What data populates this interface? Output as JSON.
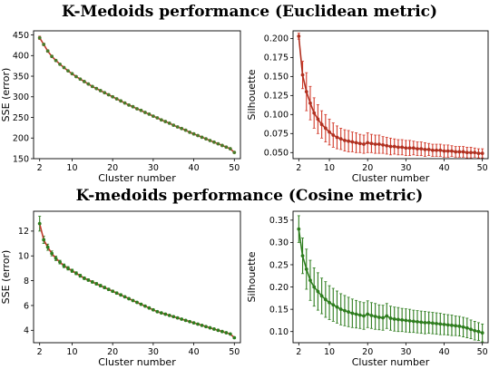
{
  "titles": {
    "top": "K-Medoids performance (Euclidean metric)",
    "bottom": "K-medoids performance (Cosine metric)"
  },
  "chart_data": [
    {
      "id": "euclid-sse",
      "type": "line",
      "title": "",
      "xlabel": "Cluster number",
      "ylabel": "SSE (error)",
      "xlim": [
        0.5,
        51.5
      ],
      "ylim": [
        150,
        460
      ],
      "xticks": [
        2,
        10,
        20,
        30,
        40,
        50
      ],
      "yticks": [
        150,
        200,
        250,
        300,
        350,
        400,
        450
      ],
      "ytick_labels": [
        "150",
        "200",
        "250",
        "300",
        "350",
        "400",
        "450"
      ],
      "grid": false,
      "legend": "none",
      "line_color": "#c0392b",
      "marker_color": "#4a7a2a",
      "error_color": "#c0392b",
      "x": [
        2,
        3,
        4,
        5,
        6,
        7,
        8,
        9,
        10,
        11,
        12,
        13,
        14,
        15,
        16,
        17,
        18,
        19,
        20,
        21,
        22,
        23,
        24,
        25,
        26,
        27,
        28,
        29,
        30,
        31,
        32,
        33,
        34,
        35,
        36,
        37,
        38,
        39,
        40,
        41,
        42,
        43,
        44,
        45,
        46,
        47,
        48,
        49,
        50
      ],
      "y": [
        443,
        427,
        411,
        398,
        388,
        379,
        371,
        363,
        356,
        349,
        343,
        337,
        331,
        325,
        320,
        315,
        310,
        305,
        300,
        295,
        290,
        285,
        280,
        276,
        271,
        267,
        262,
        258,
        253,
        249,
        244,
        240,
        236,
        231,
        227,
        223,
        219,
        214,
        210,
        206,
        202,
        198,
        194,
        190,
        186,
        182,
        178,
        174,
        165
      ],
      "err": [
        4,
        3,
        3,
        2,
        2,
        2,
        2,
        2,
        2,
        2,
        2,
        2,
        2,
        2,
        2,
        2,
        2,
        2,
        2,
        2,
        2,
        2,
        2,
        2,
        2,
        2,
        2,
        2,
        2,
        2,
        2,
        2,
        2,
        2,
        2,
        2,
        2,
        2,
        2,
        2,
        2,
        2,
        2,
        2,
        2,
        2,
        2,
        2,
        2
      ]
    },
    {
      "id": "euclid-silhouette",
      "type": "line",
      "title": "",
      "xlabel": "Cluster number",
      "ylabel": "Silhouette",
      "xlim": [
        0.5,
        51.5
      ],
      "ylim": [
        0.042,
        0.21
      ],
      "xticks": [
        2,
        10,
        20,
        30,
        40,
        50
      ],
      "yticks": [
        0.05,
        0.075,
        0.1,
        0.125,
        0.15,
        0.175,
        0.2
      ],
      "ytick_labels": [
        "0.050",
        "0.075",
        "0.100",
        "0.125",
        "0.150",
        "0.175",
        "0.200"
      ],
      "grid": false,
      "legend": "none",
      "line_color": "#b03020",
      "marker_color": "#b03020",
      "error_color": "#d23a2a",
      "x": [
        2,
        3,
        4,
        5,
        6,
        7,
        8,
        9,
        10,
        11,
        12,
        13,
        14,
        15,
        16,
        17,
        18,
        19,
        20,
        21,
        22,
        23,
        24,
        25,
        26,
        27,
        28,
        29,
        30,
        31,
        32,
        33,
        34,
        35,
        36,
        37,
        38,
        39,
        40,
        41,
        42,
        43,
        44,
        45,
        46,
        47,
        48,
        49,
        50
      ],
      "y": [
        0.203,
        0.152,
        0.13,
        0.115,
        0.102,
        0.094,
        0.087,
        0.082,
        0.077,
        0.073,
        0.07,
        0.068,
        0.066,
        0.065,
        0.064,
        0.063,
        0.062,
        0.061,
        0.063,
        0.062,
        0.061,
        0.061,
        0.06,
        0.059,
        0.058,
        0.058,
        0.057,
        0.057,
        0.056,
        0.056,
        0.056,
        0.055,
        0.055,
        0.054,
        0.054,
        0.053,
        0.053,
        0.053,
        0.052,
        0.052,
        0.052,
        0.051,
        0.051,
        0.051,
        0.05,
        0.05,
        0.05,
        0.049,
        0.049
      ],
      "err": [
        0.004,
        0.018,
        0.025,
        0.022,
        0.02,
        0.019,
        0.018,
        0.018,
        0.017,
        0.016,
        0.015,
        0.014,
        0.014,
        0.014,
        0.013,
        0.013,
        0.012,
        0.012,
        0.013,
        0.012,
        0.012,
        0.012,
        0.011,
        0.011,
        0.011,
        0.01,
        0.01,
        0.01,
        0.01,
        0.01,
        0.009,
        0.009,
        0.009,
        0.009,
        0.008,
        0.008,
        0.008,
        0.008,
        0.008,
        0.008,
        0.007,
        0.007,
        0.007,
        0.007,
        0.007,
        0.007,
        0.006,
        0.006,
        0.006
      ]
    },
    {
      "id": "cosine-sse",
      "type": "line",
      "title": "",
      "xlabel": "Cluster number",
      "ylabel": "SSE (error)",
      "xlim": [
        0.5,
        51.5
      ],
      "ylim": [
        3.0,
        13.6
      ],
      "xticks": [
        2,
        10,
        20,
        30,
        40,
        50
      ],
      "yticks": [
        4,
        6,
        8,
        10,
        12
      ],
      "ytick_labels": [
        "4",
        "6",
        "8",
        "10",
        "12"
      ],
      "grid": false,
      "legend": "none",
      "line_color": "#c0392b",
      "marker_color": "#2e7d1e",
      "error_color": "#2e7d1e",
      "x": [
        2,
        3,
        4,
        5,
        6,
        7,
        8,
        9,
        10,
        11,
        12,
        13,
        14,
        15,
        16,
        17,
        18,
        19,
        20,
        21,
        22,
        23,
        24,
        25,
        26,
        27,
        28,
        29,
        30,
        31,
        32,
        33,
        34,
        35,
        36,
        37,
        38,
        39,
        40,
        41,
        42,
        43,
        44,
        45,
        46,
        47,
        48,
        49,
        50
      ],
      "y": [
        12.6,
        11.3,
        10.7,
        10.2,
        9.8,
        9.5,
        9.2,
        9.0,
        8.8,
        8.6,
        8.4,
        8.2,
        8.05,
        7.9,
        7.75,
        7.6,
        7.45,
        7.3,
        7.15,
        7.0,
        6.85,
        6.7,
        6.55,
        6.4,
        6.25,
        6.1,
        5.95,
        5.8,
        5.65,
        5.5,
        5.4,
        5.3,
        5.2,
        5.1,
        5.0,
        4.9,
        4.8,
        4.7,
        4.6,
        4.5,
        4.4,
        4.3,
        4.2,
        4.1,
        4.0,
        3.9,
        3.8,
        3.7,
        3.4
      ],
      "err": [
        0.6,
        0.3,
        0.25,
        0.2,
        0.18,
        0.15,
        0.15,
        0.14,
        0.13,
        0.12,
        0.12,
        0.11,
        0.1,
        0.1,
        0.1,
        0.1,
        0.1,
        0.09,
        0.09,
        0.09,
        0.09,
        0.08,
        0.08,
        0.08,
        0.08,
        0.08,
        0.07,
        0.07,
        0.07,
        0.07,
        0.07,
        0.07,
        0.06,
        0.06,
        0.06,
        0.06,
        0.06,
        0.06,
        0.06,
        0.06,
        0.05,
        0.05,
        0.05,
        0.05,
        0.05,
        0.05,
        0.05,
        0.05,
        0.05
      ]
    },
    {
      "id": "cosine-silhouette",
      "type": "line",
      "title": "",
      "xlabel": "Cluster number",
      "ylabel": "Silhouette",
      "xlim": [
        0.5,
        51.5
      ],
      "ylim": [
        0.075,
        0.37
      ],
      "xticks": [
        2,
        10,
        20,
        30,
        40,
        50
      ],
      "yticks": [
        0.1,
        0.15,
        0.2,
        0.25,
        0.3,
        0.35
      ],
      "ytick_labels": [
        "0.10",
        "0.15",
        "0.20",
        "0.25",
        "0.30",
        "0.35"
      ],
      "grid": false,
      "legend": "none",
      "line_color": "#2e7d1e",
      "marker_color": "#2e7d1e",
      "error_color": "#2e7d1e",
      "x": [
        2,
        3,
        4,
        5,
        6,
        7,
        8,
        9,
        10,
        11,
        12,
        13,
        14,
        15,
        16,
        17,
        18,
        19,
        20,
        21,
        22,
        23,
        24,
        25,
        26,
        27,
        28,
        29,
        30,
        31,
        32,
        33,
        34,
        35,
        36,
        37,
        38,
        39,
        40,
        41,
        42,
        43,
        44,
        45,
        46,
        47,
        48,
        49,
        50
      ],
      "y": [
        0.33,
        0.27,
        0.24,
        0.215,
        0.2,
        0.19,
        0.18,
        0.172,
        0.165,
        0.16,
        0.155,
        0.15,
        0.147,
        0.144,
        0.141,
        0.139,
        0.137,
        0.135,
        0.139,
        0.136,
        0.134,
        0.132,
        0.131,
        0.135,
        0.13,
        0.128,
        0.127,
        0.126,
        0.125,
        0.124,
        0.123,
        0.122,
        0.121,
        0.12,
        0.12,
        0.119,
        0.118,
        0.117,
        0.116,
        0.115,
        0.114,
        0.113,
        0.112,
        0.11,
        0.108,
        0.105,
        0.102,
        0.1,
        0.097
      ],
      "err": [
        0.03,
        0.04,
        0.045,
        0.045,
        0.043,
        0.042,
        0.04,
        0.04,
        0.038,
        0.037,
        0.036,
        0.035,
        0.034,
        0.033,
        0.032,
        0.031,
        0.03,
        0.03,
        0.03,
        0.029,
        0.029,
        0.028,
        0.028,
        0.028,
        0.027,
        0.027,
        0.027,
        0.026,
        0.026,
        0.026,
        0.025,
        0.025,
        0.025,
        0.025,
        0.024,
        0.024,
        0.024,
        0.024,
        0.023,
        0.023,
        0.023,
        0.022,
        0.022,
        0.022,
        0.022,
        0.021,
        0.021,
        0.02,
        0.02
      ]
    }
  ]
}
